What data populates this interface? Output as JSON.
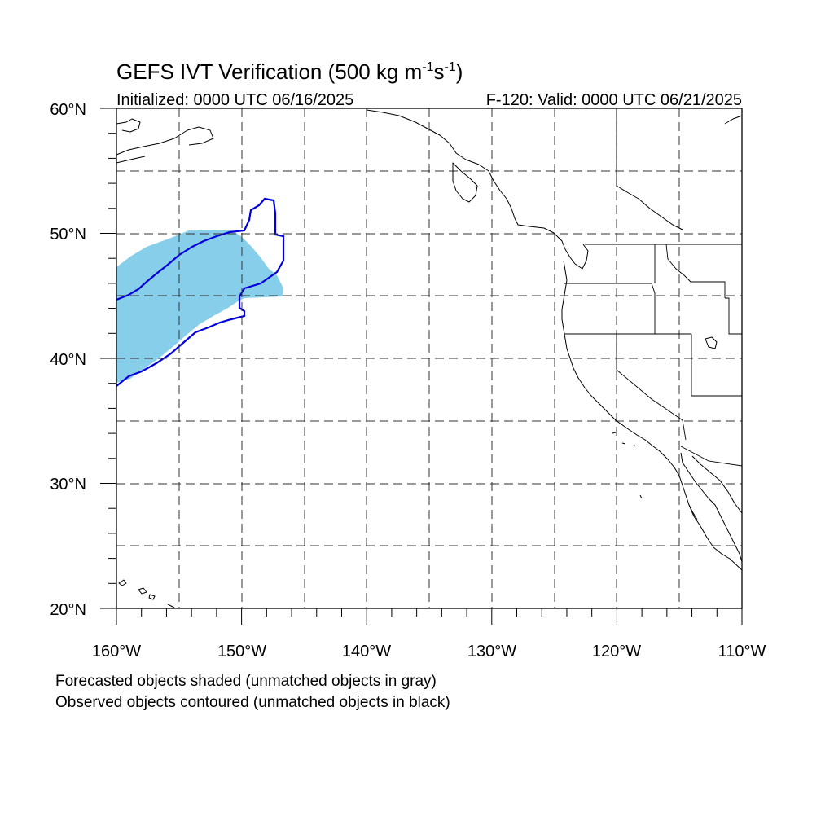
{
  "title": {
    "main": "GEFS IVT Verification (500 kg m",
    "exp1": "-1",
    "mid": "s",
    "exp2": "-1",
    "close": ")"
  },
  "subtitle": {
    "left": "Initialized: 0000 UTC 06/16/2025",
    "right": "F-120: Valid: 0000 UTC 06/21/2025"
  },
  "axes": {
    "lon_range": [
      -160,
      -110
    ],
    "lat_range": [
      20,
      60
    ],
    "x_tick_labels": [
      "160°W",
      "150°W",
      "140°W",
      "130°W",
      "120°W",
      "110°W"
    ],
    "y_tick_labels": [
      "20°N",
      "30°N",
      "40°N",
      "50°N",
      "60°N"
    ],
    "grid": "dashed every 5 degrees"
  },
  "legend": {
    "line1": "Forecasted objects shaded (unmatched objects in gray)",
    "line2": "Observed objects contoured (unmatched objects in black)"
  },
  "colors": {
    "forecast_fill": "#87ceeb",
    "observed_contour": "#0000dd",
    "coast": "#000000",
    "grid": "#000000"
  }
}
